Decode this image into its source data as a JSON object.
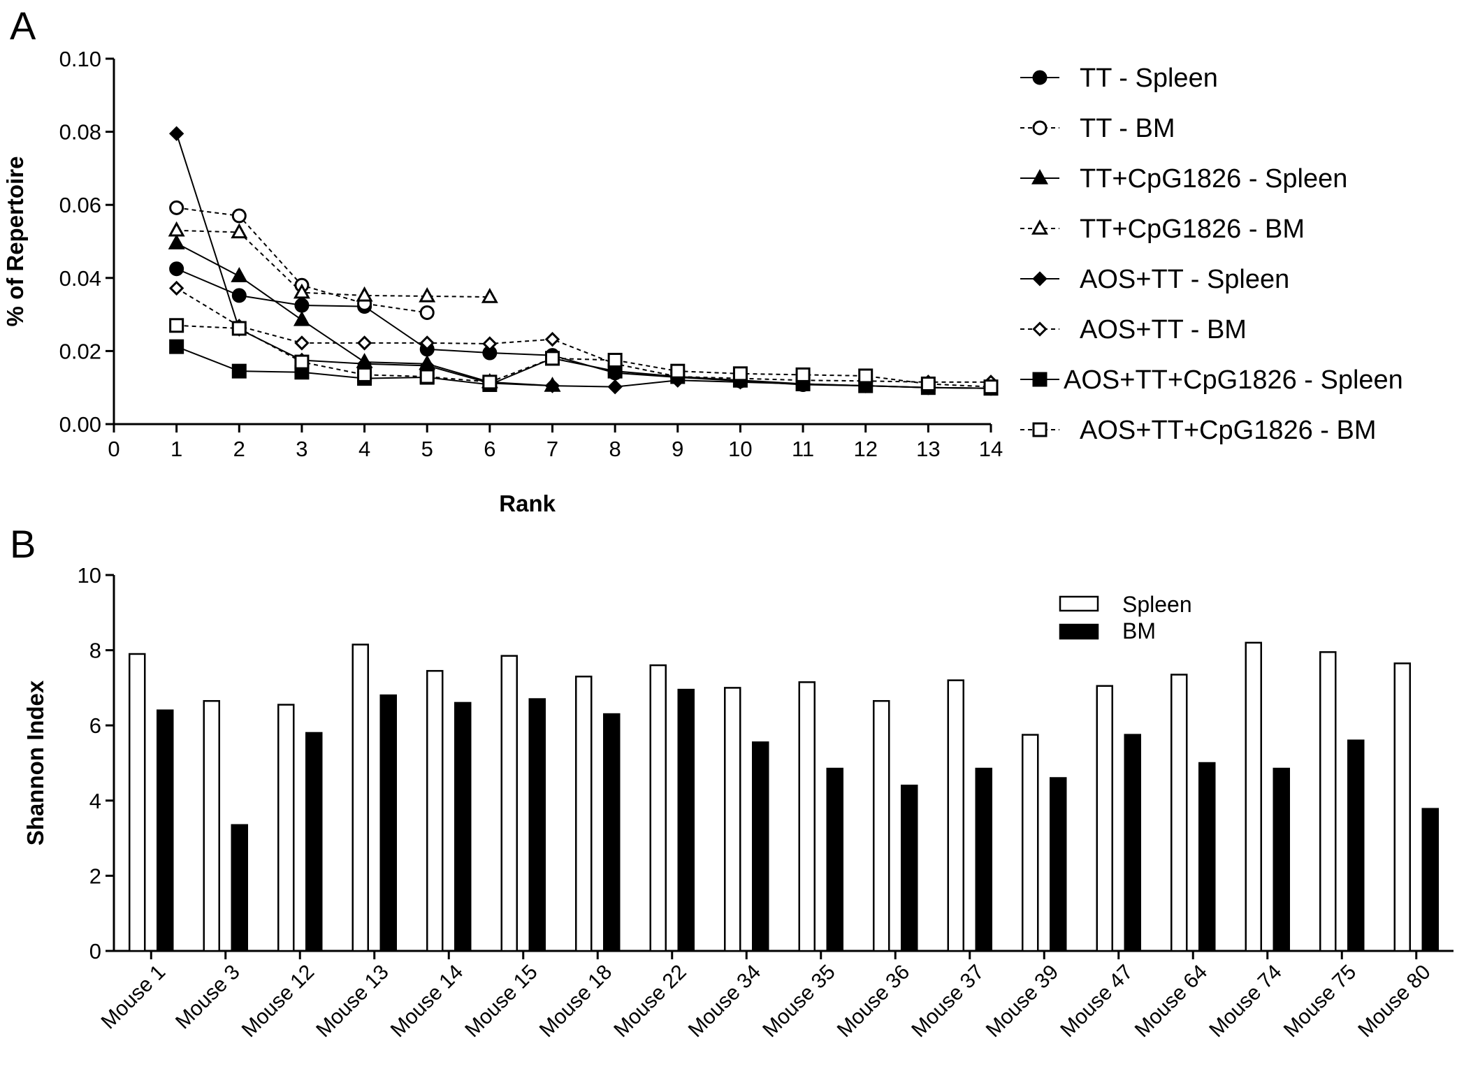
{
  "chart_data": [
    {
      "panel": "A",
      "type": "line",
      "xlabel": "Rank",
      "ylabel": "% of Repertoire",
      "xlim": [
        0,
        14
      ],
      "ylim": [
        0,
        0.1
      ],
      "x_ticks": [
        "0",
        "1",
        "2",
        "3",
        "4",
        "5",
        "6",
        "7",
        "8",
        "9",
        "10",
        "11",
        "12",
        "13",
        "14"
      ],
      "y_ticks": [
        "0.00",
        "0.02",
        "0.04",
        "0.06",
        "0.08",
        "0.10"
      ],
      "grid": false,
      "legend_position": "right",
      "series": [
        {
          "name": "TT - Spleen",
          "marker": "circle",
          "fill": "filled",
          "line": "solid",
          "x": [
            1,
            2,
            3,
            4,
            5,
            6,
            7,
            8,
            9,
            10,
            11,
            12,
            13,
            14
          ],
          "y": [
            0.0425,
            0.0352,
            0.0325,
            0.0322,
            0.0205,
            0.0195,
            0.0188,
            0.014,
            0.0128,
            0.0118,
            0.0108,
            0.0105,
            0.01,
            0.0098
          ]
        },
        {
          "name": "TT - BM",
          "marker": "circle",
          "fill": "open",
          "line": "dashed",
          "x": [
            1,
            2,
            3,
            4,
            5
          ],
          "y": [
            0.0592,
            0.057,
            0.038,
            0.033,
            0.0305
          ]
        },
        {
          "name": "TT+CpG1826 - Spleen",
          "marker": "triangle",
          "fill": "filled",
          "line": "solid",
          "x": [
            1,
            2,
            3,
            4,
            5,
            6,
            7
          ],
          "y": [
            0.0495,
            0.0405,
            0.0285,
            0.017,
            0.0165,
            0.0115,
            0.0105
          ]
        },
        {
          "name": "TT+CpG1826 - BM",
          "marker": "triangle",
          "fill": "open",
          "line": "dashed",
          "x": [
            1,
            2,
            3,
            4,
            5,
            6
          ],
          "y": [
            0.053,
            0.0525,
            0.036,
            0.0352,
            0.035,
            0.0348
          ]
        },
        {
          "name": "AOS+TT - Spleen",
          "marker": "diamond",
          "fill": "filled",
          "line": "solid",
          "x": [
            1,
            2,
            3,
            4,
            5,
            6,
            7,
            8,
            9,
            10,
            11,
            12,
            13,
            14
          ],
          "y": [
            0.0795,
            0.026,
            0.0175,
            0.0165,
            0.016,
            0.0112,
            0.0105,
            0.0102,
            0.012,
            0.0115,
            0.011,
            0.0105,
            0.01,
            0.0098
          ]
        },
        {
          "name": "AOS+TT - BM",
          "marker": "diamond",
          "fill": "open",
          "line": "dashed",
          "x": [
            1,
            2,
            3,
            4,
            5,
            6,
            7,
            8,
            9,
            10,
            11,
            12,
            13,
            14
          ],
          "y": [
            0.0372,
            0.0268,
            0.0222,
            0.0222,
            0.0222,
            0.022,
            0.0232,
            0.0165,
            0.013,
            0.0125,
            0.012,
            0.0118,
            0.0115,
            0.0115
          ]
        },
        {
          "name": "AOS+TT+CpG1826 - Spleen",
          "marker": "square",
          "fill": "filled",
          "line": "solid",
          "x": [
            1,
            2,
            3,
            4,
            5,
            6,
            7,
            8,
            9,
            10,
            11,
            12,
            13,
            14
          ],
          "y": [
            0.0212,
            0.0145,
            0.0142,
            0.0125,
            0.0128,
            0.0108,
            0.018,
            0.0145,
            0.013,
            0.012,
            0.011,
            0.0105,
            0.01,
            0.0098
          ]
        },
        {
          "name": "AOS+TT+CpG1826 - BM",
          "marker": "square",
          "fill": "open",
          "line": "dashed",
          "x": [
            1,
            2,
            3,
            4,
            5,
            6,
            7,
            8,
            9,
            10,
            11,
            12,
            13,
            14
          ],
          "y": [
            0.027,
            0.0262,
            0.017,
            0.0135,
            0.013,
            0.0115,
            0.018,
            0.0175,
            0.0145,
            0.0138,
            0.0135,
            0.0132,
            0.011,
            0.0102
          ]
        }
      ]
    },
    {
      "panel": "B",
      "type": "bar",
      "xlabel": "",
      "ylabel": "Shannon Index",
      "ylim": [
        0,
        10
      ],
      "y_ticks": [
        "0",
        "2",
        "4",
        "6",
        "8",
        "10"
      ],
      "grid": false,
      "legend_position": "top-right",
      "categories": [
        "Mouse 1",
        "Mouse 3",
        "Mouse 12",
        "Mouse 13",
        "Mouse 14",
        "Mouse 15",
        "Mouse 18",
        "Mouse 22",
        "Mouse 34",
        "Mouse 35",
        "Mouse 36",
        "Mouse 37",
        "Mouse 39",
        "Mouse 47",
        "Mouse 64",
        "Mouse 74",
        "Mouse 75",
        "Mouse 80"
      ],
      "series": [
        {
          "name": "Spleen",
          "fill": "open",
          "values": [
            7.9,
            6.65,
            6.55,
            8.15,
            7.45,
            7.85,
            7.3,
            7.6,
            7.0,
            7.15,
            6.65,
            7.2,
            5.75,
            7.05,
            7.35,
            8.2,
            7.95,
            7.65
          ]
        },
        {
          "name": "BM",
          "fill": "filled",
          "values": [
            6.4,
            3.35,
            5.8,
            6.8,
            6.6,
            6.7,
            6.3,
            6.95,
            5.55,
            4.85,
            4.4,
            4.85,
            4.6,
            5.75,
            5.0,
            4.85,
            5.6,
            3.78
          ]
        }
      ]
    }
  ],
  "panels": {
    "a_label": "A",
    "b_label": "B"
  }
}
